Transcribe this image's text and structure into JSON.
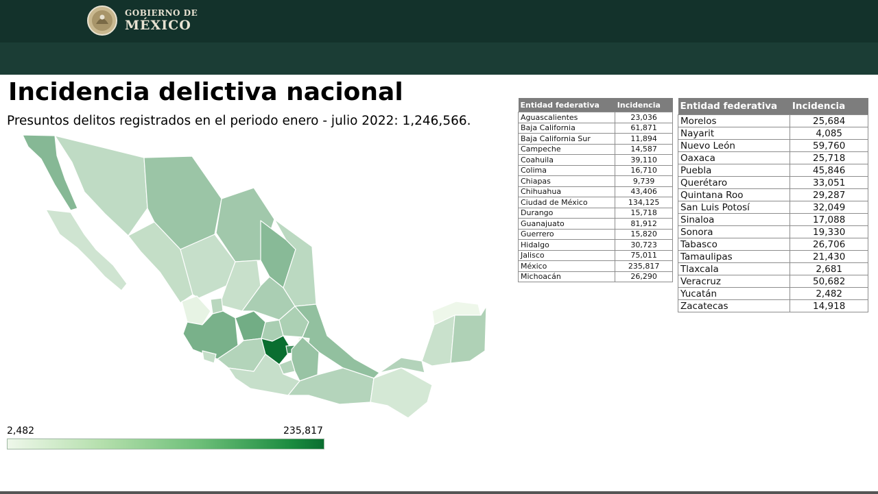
{
  "header": {
    "logo_line1": "GOBIERNO DE",
    "logo_line2": "MÉXICO",
    "bar_color": "#13322b",
    "subbar_color": "#1b3d35"
  },
  "title": "Incidencia delictiva nacional",
  "subtitle": "Presuntos delitos registrados en el periodo enero - julio 2022: 1,246,566.",
  "map": {
    "scale_colors": [
      "#eef7ea",
      "#0a6e30"
    ],
    "regions": [
      {
        "name": "baja-california",
        "value": 61871
      },
      {
        "name": "baja-california-sur",
        "value": 11894
      },
      {
        "name": "sonora",
        "value": 19330
      },
      {
        "name": "chihuahua",
        "value": 43406
      },
      {
        "name": "coahuila",
        "value": 39110
      },
      {
        "name": "nuevo-leon",
        "value": 59760
      },
      {
        "name": "tamaulipas",
        "value": 21430
      },
      {
        "name": "sinaloa",
        "value": 17088
      },
      {
        "name": "durango",
        "value": 15718
      },
      {
        "name": "zacatecas",
        "value": 14918
      },
      {
        "name": "san-luis-potosi",
        "value": 32049
      },
      {
        "name": "nayarit",
        "value": 4085
      },
      {
        "name": "aguascalientes",
        "value": 23036
      },
      {
        "name": "jalisco",
        "value": 75011
      },
      {
        "name": "guanajuato",
        "value": 81912
      },
      {
        "name": "queretaro",
        "value": 33051
      },
      {
        "name": "hidalgo",
        "value": 30723
      },
      {
        "name": "veracruz",
        "value": 50682
      },
      {
        "name": "colima",
        "value": 16710
      },
      {
        "name": "michoacan",
        "value": 26290
      },
      {
        "name": "mexico",
        "value": 235817
      },
      {
        "name": "ciudad-de-mexico",
        "value": 134125
      },
      {
        "name": "morelos",
        "value": 25684
      },
      {
        "name": "tlaxcala",
        "value": 2681
      },
      {
        "name": "puebla",
        "value": 45846
      },
      {
        "name": "guerrero",
        "value": 15820
      },
      {
        "name": "oaxaca",
        "value": 25718
      },
      {
        "name": "chiapas",
        "value": 9739
      },
      {
        "name": "tabasco",
        "value": 26706
      },
      {
        "name": "campeche",
        "value": 14587
      },
      {
        "name": "yucatan",
        "value": 2482
      },
      {
        "name": "quintana-roo",
        "value": 29287
      }
    ]
  },
  "legend": {
    "min": "2,482",
    "max": "235,817"
  },
  "table_left": {
    "header_entity": "Entidad federativa",
    "header_value": "Incidencia",
    "rows": [
      {
        "entity": "Aguascalientes",
        "value": "23,036"
      },
      {
        "entity": "Baja California",
        "value": "61,871"
      },
      {
        "entity": "Baja California Sur",
        "value": "11,894"
      },
      {
        "entity": "Campeche",
        "value": "14,587"
      },
      {
        "entity": "Coahuila",
        "value": "39,110"
      },
      {
        "entity": "Colima",
        "value": "16,710"
      },
      {
        "entity": "Chiapas",
        "value": "9,739"
      },
      {
        "entity": "Chihuahua",
        "value": "43,406"
      },
      {
        "entity": "Ciudad de México",
        "value": "134,125"
      },
      {
        "entity": "Durango",
        "value": "15,718"
      },
      {
        "entity": "Guanajuato",
        "value": "81,912"
      },
      {
        "entity": "Guerrero",
        "value": "15,820"
      },
      {
        "entity": "Hidalgo",
        "value": "30,723"
      },
      {
        "entity": "Jalisco",
        "value": "75,011"
      },
      {
        "entity": "México",
        "value": "235,817"
      },
      {
        "entity": "Michoacán",
        "value": "26,290"
      }
    ]
  },
  "table_right": {
    "header_entity": "Entidad federativa",
    "header_value": "Incidencia",
    "rows": [
      {
        "entity": "Morelos",
        "value": "25,684"
      },
      {
        "entity": "Nayarit",
        "value": "4,085"
      },
      {
        "entity": "Nuevo León",
        "value": "59,760"
      },
      {
        "entity": "Oaxaca",
        "value": "25,718"
      },
      {
        "entity": "Puebla",
        "value": "45,846"
      },
      {
        "entity": "Querétaro",
        "value": "33,051"
      },
      {
        "entity": "Quintana Roo",
        "value": "29,287"
      },
      {
        "entity": "San Luis Potosí",
        "value": "32,049"
      },
      {
        "entity": "Sinaloa",
        "value": "17,088"
      },
      {
        "entity": "Sonora",
        "value": "19,330"
      },
      {
        "entity": "Tabasco",
        "value": "26,706"
      },
      {
        "entity": "Tamaulipas",
        "value": "21,430"
      },
      {
        "entity": "Tlaxcala",
        "value": "2,681"
      },
      {
        "entity": "Veracruz",
        "value": "50,682"
      },
      {
        "entity": "Yucatán",
        "value": "2,482"
      },
      {
        "entity": "Zacatecas",
        "value": "14,918"
      }
    ]
  }
}
